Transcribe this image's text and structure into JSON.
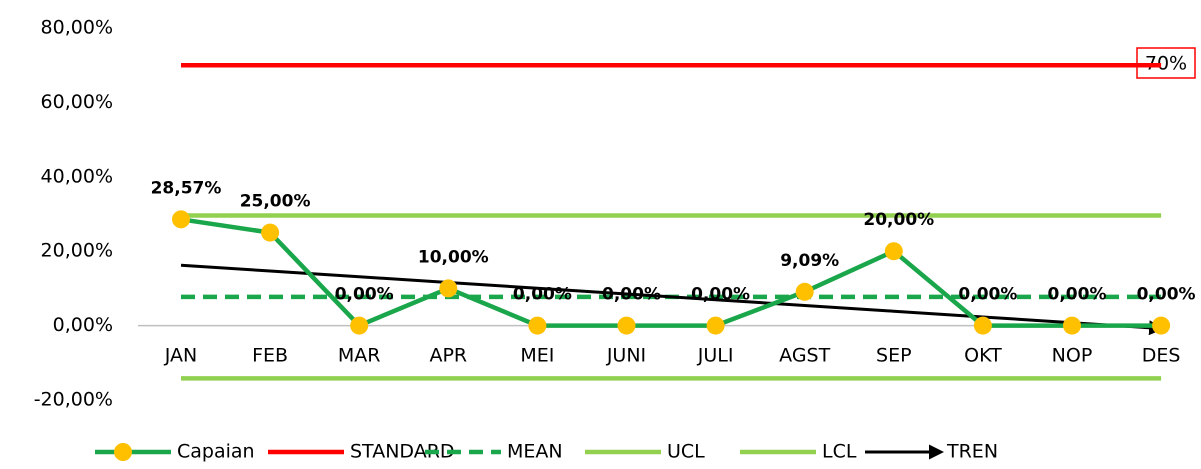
{
  "chart_data": {
    "type": "line",
    "categories": [
      "JAN",
      "FEB",
      "MAR",
      "APR",
      "MEI",
      "JUNI",
      "JULI",
      "AGST",
      "SEP",
      "OKT",
      "NOP",
      "DES"
    ],
    "series": [
      {
        "name": "Capaian",
        "color": "#1aa64a",
        "marker_color": "#ffc000",
        "marker": true,
        "values": [
          28.57,
          25,
          0,
          10,
          0,
          0,
          0,
          9.09,
          20,
          0,
          0,
          0
        ],
        "value_labels": [
          "28,57%",
          "25,00%",
          "0,00%",
          "10,00%",
          "0,00%",
          "0,00%",
          "0,00%",
          "9,09%",
          "20,00%",
          "0,00%",
          "0,00%",
          "0,00%"
        ]
      },
      {
        "name": "STANDARD",
        "color": "#ff0000",
        "values": [
          70,
          70,
          70,
          70,
          70,
          70,
          70,
          70,
          70,
          70,
          70,
          70
        ]
      },
      {
        "name": "MEAN",
        "color": "#1aa64a",
        "dashed": true,
        "values": [
          7.72,
          7.72,
          7.72,
          7.72,
          7.72,
          7.72,
          7.72,
          7.72,
          7.72,
          7.72,
          7.72,
          7.72
        ]
      },
      {
        "name": "UCL",
        "color": "#92d050",
        "values": [
          29.6,
          29.6,
          29.6,
          29.6,
          29.6,
          29.6,
          29.6,
          29.6,
          29.6,
          29.6,
          29.6,
          29.6
        ]
      },
      {
        "name": "LCL",
        "color": "#92d050",
        "values": [
          -14.2,
          -14.2,
          -14.2,
          -14.2,
          -14.2,
          -14.2,
          -14.2,
          -14.2,
          -14.2,
          -14.2,
          -14.2,
          -14.2
        ]
      },
      {
        "name": "TREN",
        "color": "#000000",
        "arrow": true,
        "values": [
          16.22,
          14.68,
          13.13,
          11.59,
          10.04,
          8.5,
          6.95,
          5.41,
          3.86,
          2.32,
          0.77,
          -0.78
        ]
      }
    ],
    "annotation": "70%",
    "ylim": [
      -20,
      80
    ],
    "yticks": [
      {
        "value": -20,
        "label": "-20,00%"
      },
      {
        "value": 0,
        "label": "0,00%"
      },
      {
        "value": 20,
        "label": "20,00%"
      },
      {
        "value": 40,
        "label": "40,00%"
      },
      {
        "value": 60,
        "label": "60,00%"
      },
      {
        "value": 80,
        "label": "80,00%"
      }
    ],
    "legend": "bottom"
  }
}
